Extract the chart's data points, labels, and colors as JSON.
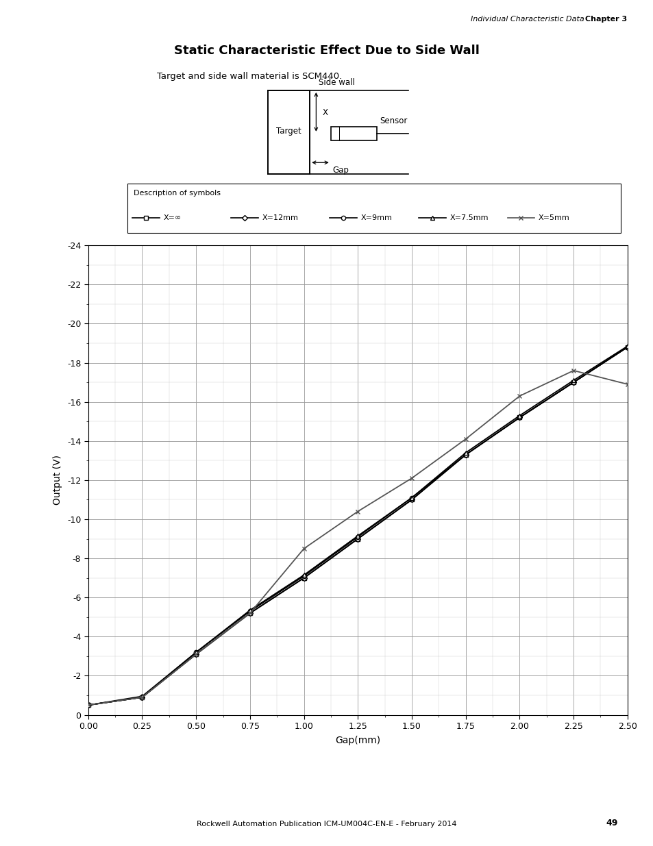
{
  "title": "Static Characteristic Effect Due to Side Wall",
  "subtitle": "Target and side wall material is SCM440.",
  "xlabel": "Gap(mm)",
  "ylabel": "Output (V)",
  "xlim": [
    0.0,
    2.5
  ],
  "ylim": [
    0,
    -24
  ],
  "xticks": [
    0.0,
    0.25,
    0.5,
    0.75,
    1.0,
    1.25,
    1.5,
    1.75,
    2.0,
    2.25,
    2.5
  ],
  "yticks": [
    0,
    -2,
    -4,
    -6,
    -8,
    -10,
    -12,
    -14,
    -16,
    -18,
    -20,
    -22,
    -24
  ],
  "legend_title": "Description of symbols",
  "series": [
    {
      "label": "X=∞",
      "marker": "s",
      "color": "#000000",
      "linestyle": "-",
      "linewidth": 1.3,
      "x": [
        0.0,
        0.25,
        0.5,
        0.75,
        1.0,
        1.25,
        1.5,
        1.75,
        2.0,
        2.25,
        2.5
      ],
      "y": [
        -0.5,
        -0.9,
        -3.1,
        -5.2,
        -7.0,
        -9.0,
        -11.0,
        -13.3,
        -15.2,
        -17.0,
        -18.8
      ]
    },
    {
      "label": "X=12mm",
      "marker": "D",
      "color": "#000000",
      "linestyle": "-",
      "linewidth": 1.3,
      "x": [
        0.0,
        0.25,
        0.5,
        0.75,
        1.0,
        1.25,
        1.5,
        1.75,
        2.0,
        2.25,
        2.5
      ],
      "y": [
        -0.5,
        -0.9,
        -3.1,
        -5.2,
        -7.0,
        -9.0,
        -11.0,
        -13.3,
        -15.2,
        -17.0,
        -18.8
      ]
    },
    {
      "label": "X=9mm",
      "marker": "o",
      "color": "#000000",
      "linestyle": "-",
      "linewidth": 1.3,
      "x": [
        0.0,
        0.25,
        0.5,
        0.75,
        1.0,
        1.25,
        1.5,
        1.75,
        2.0,
        2.25,
        2.5
      ],
      "y": [
        -0.5,
        -0.9,
        -3.2,
        -5.3,
        -7.1,
        -9.1,
        -11.1,
        -13.3,
        -15.2,
        -17.0,
        -18.8
      ]
    },
    {
      "label": "X=7.5mm",
      "marker": "^",
      "color": "#000000",
      "linestyle": "-",
      "linewidth": 1.3,
      "x": [
        0.0,
        0.25,
        0.5,
        0.75,
        1.0,
        1.25,
        1.5,
        1.75,
        2.0,
        2.25,
        2.5
      ],
      "y": [
        -0.5,
        -0.95,
        -3.2,
        -5.35,
        -7.15,
        -9.15,
        -11.1,
        -13.4,
        -15.3,
        -17.1,
        -18.85
      ]
    },
    {
      "label": "X=5mm",
      "marker": "x",
      "color": "#555555",
      "linestyle": "-",
      "linewidth": 1.3,
      "x": [
        0.0,
        0.25,
        0.5,
        0.75,
        1.0,
        1.25,
        1.5,
        1.75,
        2.0,
        2.25,
        2.5
      ],
      "y": [
        -0.5,
        -0.9,
        -3.1,
        -5.2,
        -8.5,
        -10.4,
        -12.1,
        -14.1,
        -16.3,
        -17.6,
        -16.9
      ]
    }
  ],
  "header_italic": "Individual Characteristic Data",
  "header_bold": "Chapter 3",
  "footer_text": "Rockwell Automation Publication ICM-UM004C-EN-E - February 2014",
  "footer_page": "49",
  "background_color": "#ffffff"
}
